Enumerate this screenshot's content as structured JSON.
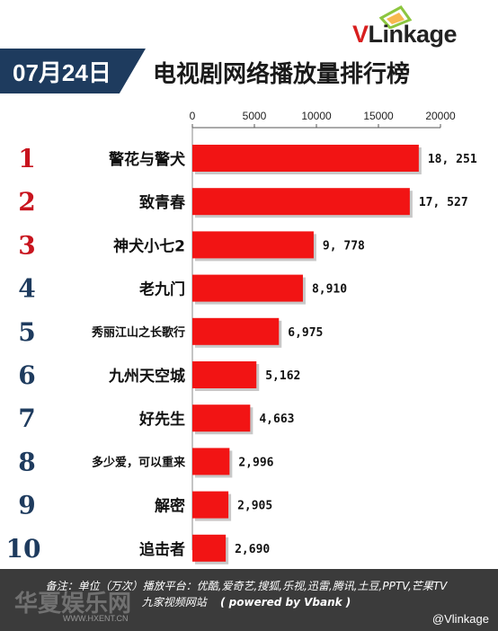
{
  "date_label": "07月24日",
  "title": "电视剧网络播放量排行榜",
  "logo": {
    "prefix": "V",
    "text": "Linkage",
    "prefix_color": "#d81e1e",
    "text_color": "#222222"
  },
  "colors": {
    "bar": "#f21414",
    "rank_top": "#c8141e",
    "rank_rest": "#1e3b5e",
    "header": "#1e3b5e"
  },
  "chart_data": {
    "type": "bar",
    "orientation": "horizontal",
    "title": "电视剧网络播放量排行榜",
    "axis_ticks": [
      0,
      5000,
      10000,
      15000,
      20000
    ],
    "xlim": [
      0,
      20000
    ],
    "ranks": [
      "1",
      "2",
      "3",
      "4",
      "5",
      "6",
      "7",
      "8",
      "9",
      "10"
    ],
    "categories": [
      "警花与警犬",
      "致青春",
      "神犬小七2",
      "老九门",
      "秀丽江山之长歌行",
      "九州天空城",
      "好先生",
      "多少爱，可以重来",
      "解密",
      "追击者"
    ],
    "values": [
      18251,
      17527,
      9778,
      8910,
      6975,
      5162,
      4663,
      2996,
      2905,
      2690
    ],
    "value_labels": [
      "18, 251",
      "17, 527",
      "9, 778",
      "8,910",
      "6,975",
      "5,162",
      "4,663",
      "2,996",
      "2,905",
      "2,690"
    ],
    "grid": false,
    "legend": false
  },
  "footer": {
    "note": "备注：单位（万次）播放平台：优酷,爱奇艺,搜狐,乐视,迅雷,腾讯,土豆,PPTV,芒果TV",
    "note2": "九家视频网站",
    "powered": "( powered by Vbank )",
    "handle": "@Vlinkage",
    "watermark": "华夏娱乐网",
    "watermark_url": "WWW.HXENT.CN"
  }
}
